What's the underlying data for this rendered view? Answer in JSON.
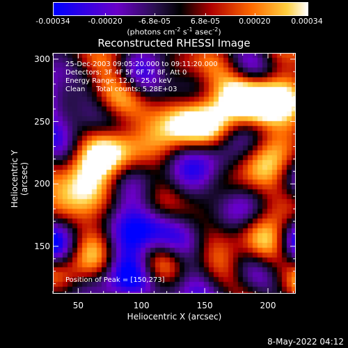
{
  "chart_data": {
    "type": "heatmap",
    "title": "Reconstructed RHESSI Image",
    "xlabel": "Heliocentric X (arcsec)",
    "ylabel": "Heliocentric Y (arcsec)",
    "xlim": [
      30,
      222
    ],
    "ylim": [
      112,
      305
    ],
    "xticks": [
      50,
      100,
      150,
      200
    ],
    "yticks": [
      150,
      200,
      250,
      300
    ],
    "colorbar": {
      "min": -0.00034,
      "max": 0.00034,
      "ticks": [
        "-0.00034",
        "-0.00020",
        "-6.8e-05",
        "6.8e-05",
        "0.00020",
        "0.00034"
      ],
      "tick_values": [
        -0.00034,
        -0.0002,
        -6.8e-05,
        6.8e-05,
        0.0002,
        0.00034
      ],
      "label_main": "(photons cm",
      "label_exp1": "-2",
      "label_mid": " s",
      "label_exp2": "-1",
      "label_end": " asec",
      "label_exp3": "-2",
      "label_close": ")",
      "colors": [
        "#0000ff",
        "#6a00c8",
        "#000000",
        "#cc0000",
        "#ff8800",
        "#ffffff"
      ]
    },
    "peak": [
      150,
      273
    ]
  },
  "annotations": {
    "line1": "25-Dec-2003 09:05:20.000 to 09:11:20.000",
    "line2": "Detectors: 3F 4F 5F 6F 7F 8F, Att 0",
    "line3": "Energy Range: 12.0 - 25.0 keV",
    "line4": "Clean     Total counts: 5.28E+03",
    "peak_text": "Position of Peak = [150,273]"
  },
  "footer": {
    "date": "8-May-2022 04:12"
  }
}
